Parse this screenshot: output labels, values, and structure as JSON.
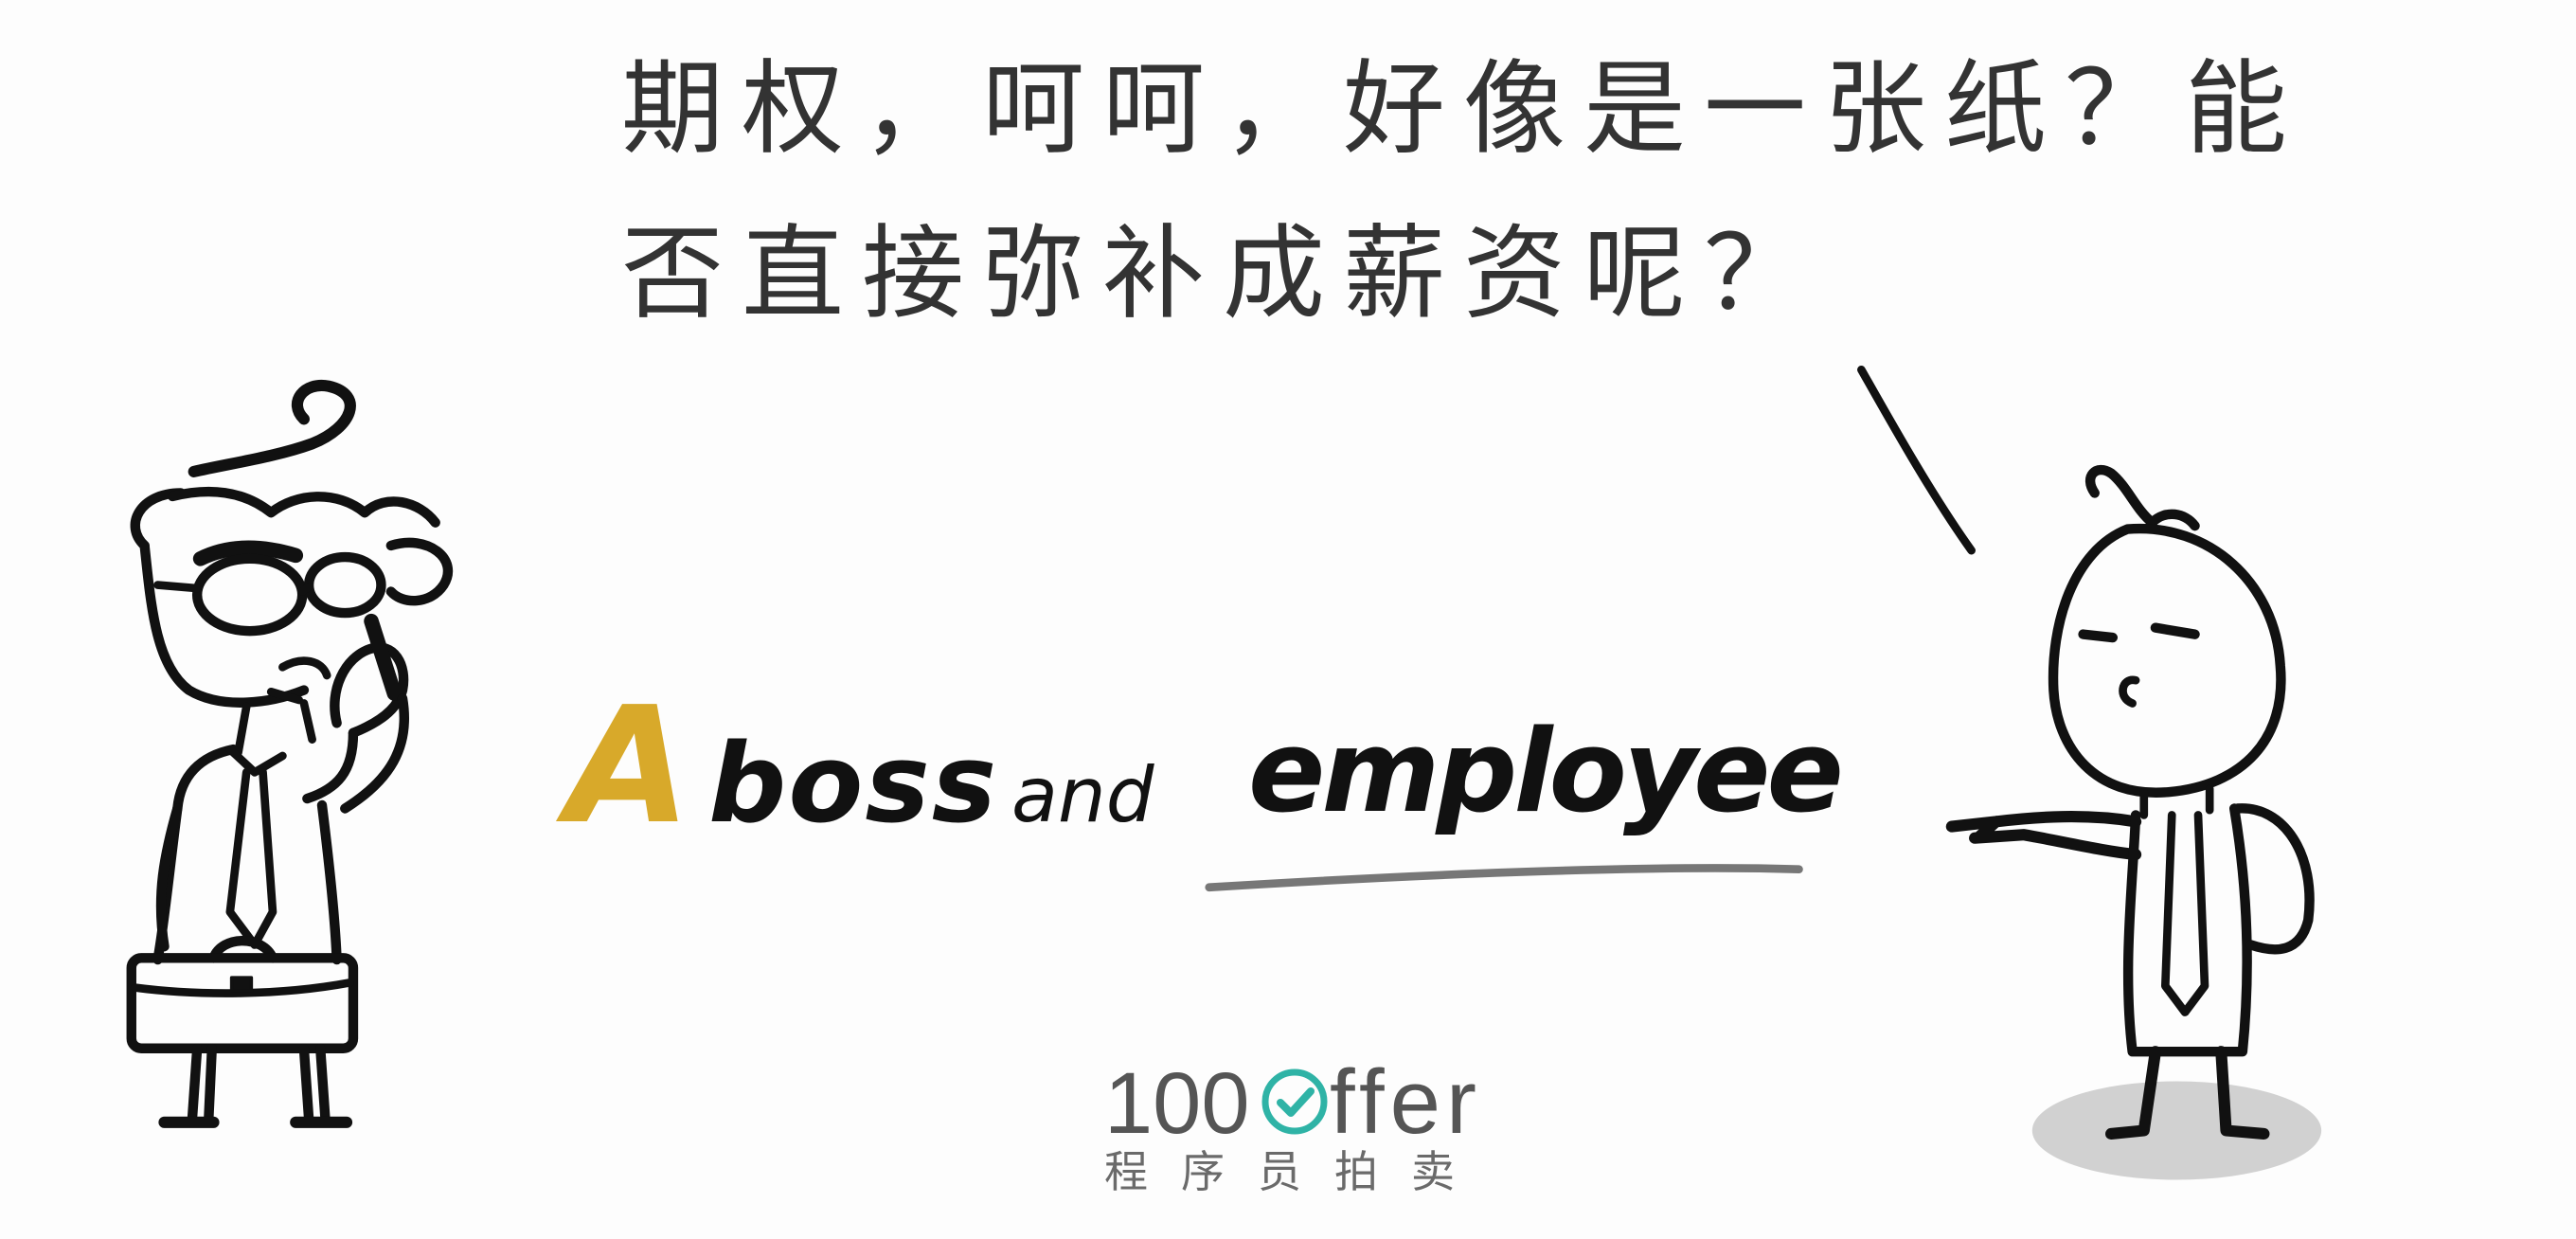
{
  "speech": {
    "lines": [
      "期权，呵呵，好像是一张纸？能",
      "否直接弥补成薪资呢？"
    ]
  },
  "title": {
    "words": [
      "A",
      "boss",
      "and",
      "employee"
    ]
  },
  "logo": {
    "number": "100",
    "suffix": "ffer",
    "tagline": "程序员拍卖"
  },
  "icons": {
    "logo_letter_o": "check-circle-icon"
  },
  "colors": {
    "accent": "#d8a92a",
    "brand": "#2fb3a6",
    "text": "#333333"
  }
}
